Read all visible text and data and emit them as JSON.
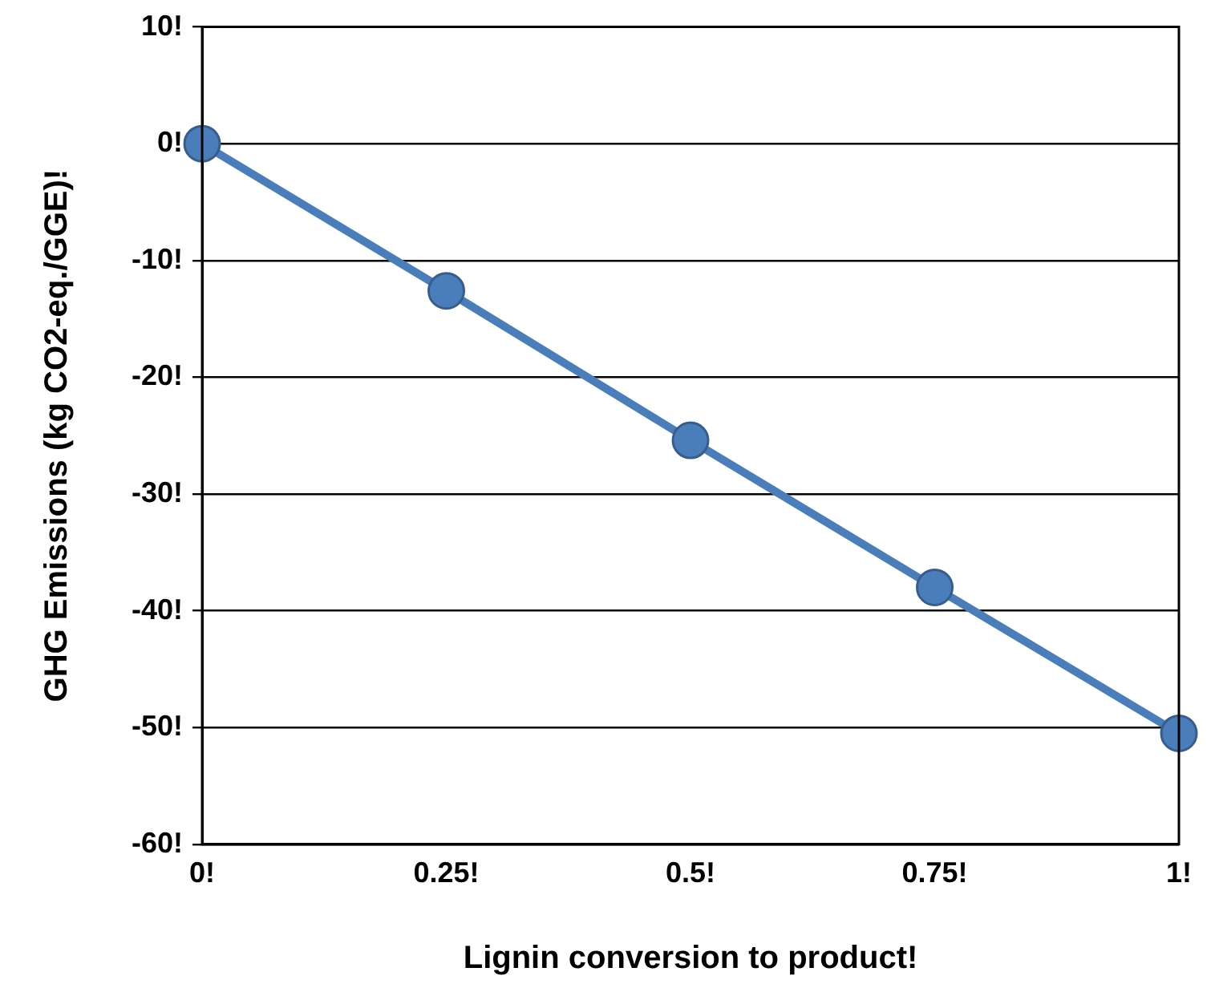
{
  "chart_data": {
    "type": "line",
    "xlabel": "Lignin conversion to product!",
    "ylabel": "GHG Emissions (kg CO2-eq./GGE)!",
    "x": [
      0,
      0.25,
      0.5,
      0.75,
      1
    ],
    "series": [
      {
        "color": "#4a7ebb",
        "values": [
          0,
          -12.6,
          -25.4,
          -38,
          -50.5
        ]
      }
    ],
    "xlim": [
      0,
      1
    ],
    "ylim": [
      -60,
      10
    ],
    "xticks": [
      {
        "value": 0,
        "label": "0!"
      },
      {
        "value": 0.25,
        "label": "0.25!"
      },
      {
        "value": 0.5,
        "label": "0.5!"
      },
      {
        "value": 0.75,
        "label": "0.75!"
      },
      {
        "value": 1,
        "label": "1!"
      }
    ],
    "yticks": [
      {
        "value": -60,
        "label": "-60!"
      },
      {
        "value": -50,
        "label": "-50!"
      },
      {
        "value": -40,
        "label": "-40!"
      },
      {
        "value": -30,
        "label": "-30!"
      },
      {
        "value": -20,
        "label": "-20!"
      },
      {
        "value": -10,
        "label": "-10!"
      },
      {
        "value": 0,
        "label": "0!"
      },
      {
        "value": 10,
        "label": "10!"
      }
    ],
    "grid": "y",
    "legend": false,
    "marker": "circle",
    "line_style": "solid"
  }
}
